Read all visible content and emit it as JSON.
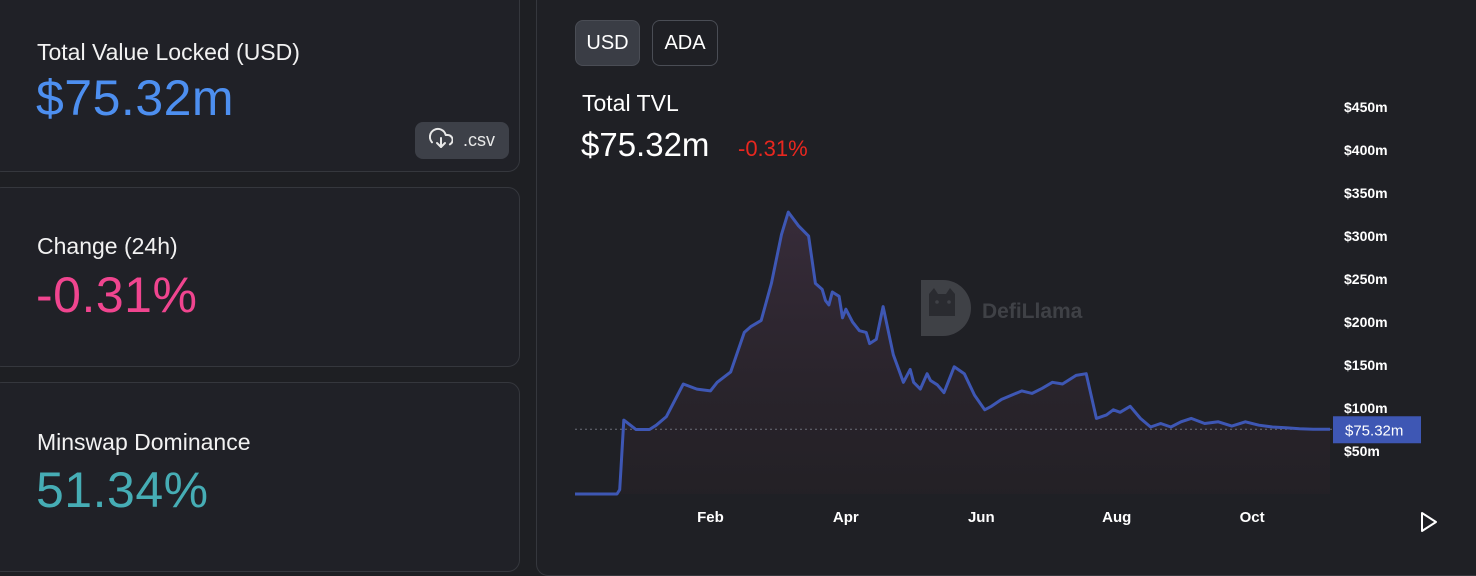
{
  "cards": {
    "tvl": {
      "label": "Total Value Locked (USD)",
      "value": "$75.32m",
      "csv_label": ".csv"
    },
    "change": {
      "label": "Change (24h)",
      "value": "-0.31%"
    },
    "dominance": {
      "label": "Minswap Dominance",
      "value": "51.34%"
    }
  },
  "chart_header": {
    "toggles": [
      "USD",
      "ADA"
    ],
    "active_toggle": "USD",
    "title": "Total TVL",
    "value": "$75.32m",
    "change": "-0.31%"
  },
  "watermark": "DefiLlama",
  "colors": {
    "line": "#3e57b4",
    "tvl_value": "#4d8ff0",
    "change_value": "#f0458f",
    "dominance_value": "#46adb5",
    "negative": "#e8271f",
    "current_label_bg": "#3e57b4"
  },
  "chart_data": {
    "type": "area",
    "title": "Total TVL",
    "xlabel": "",
    "ylabel": "",
    "x_tick_labels": [
      "Feb",
      "Apr",
      "Jun",
      "Aug",
      "Oct"
    ],
    "y_tick_labels": [
      "$50m",
      "$100m",
      "$150m",
      "$200m",
      "$250m",
      "$300m",
      "$350m",
      "$400m",
      "$450m"
    ],
    "y_ticks": [
      50,
      100,
      150,
      200,
      250,
      300,
      350,
      400,
      450
    ],
    "ylim": [
      0,
      470
    ],
    "xlim": [
      0,
      11.15
    ],
    "x_tick_positions": [
      2,
      4,
      6,
      8,
      10
    ],
    "current_value_label": "$75.32m",
    "current_value": 75.32,
    "grid": false,
    "legend": "none",
    "series": [
      {
        "name": "TVL",
        "x": [
          0.0,
          0.2,
          0.4,
          0.55,
          0.62,
          0.66,
          0.68,
          0.72,
          0.9,
          1.1,
          1.2,
          1.35,
          1.6,
          1.8,
          2.0,
          2.1,
          2.3,
          2.5,
          2.6,
          2.75,
          2.9,
          3.05,
          3.15,
          3.3,
          3.45,
          3.55,
          3.65,
          3.7,
          3.75,
          3.8,
          3.9,
          3.95,
          4.0,
          4.1,
          4.2,
          4.3,
          4.35,
          4.45,
          4.55,
          4.7,
          4.85,
          4.95,
          5.0,
          5.1,
          5.2,
          5.25,
          5.35,
          5.45,
          5.6,
          5.75,
          5.9,
          6.05,
          6.15,
          6.3,
          6.45,
          6.6,
          6.75,
          6.9,
          7.05,
          7.2,
          7.4,
          7.55,
          7.7,
          7.85,
          7.95,
          8.05,
          8.2,
          8.35,
          8.5,
          8.65,
          8.8,
          8.95,
          9.1,
          9.3,
          9.5,
          9.7,
          9.9,
          10.1,
          10.3,
          10.5,
          10.7,
          10.9,
          11.05,
          11.15
        ],
        "values": [
          0,
          0,
          0,
          0,
          0,
          5,
          30,
          86,
          75,
          75,
          80,
          90,
          128,
          122,
          120,
          130,
          142,
          188,
          195,
          202,
          245,
          302,
          328,
          312,
          300,
          245,
          238,
          225,
          220,
          235,
          230,
          205,
          215,
          200,
          190,
          188,
          175,
          180,
          218,
          162,
          130,
          145,
          130,
          122,
          140,
          132,
          127,
          118,
          148,
          140,
          115,
          98,
          102,
          110,
          115,
          120,
          117,
          123,
          130,
          128,
          138,
          140,
          88,
          92,
          98,
          95,
          102,
          88,
          78,
          82,
          78,
          84,
          88,
          82,
          84,
          79,
          84,
          80,
          78,
          77,
          76,
          75.32,
          75.32,
          75.32
        ]
      }
    ]
  }
}
